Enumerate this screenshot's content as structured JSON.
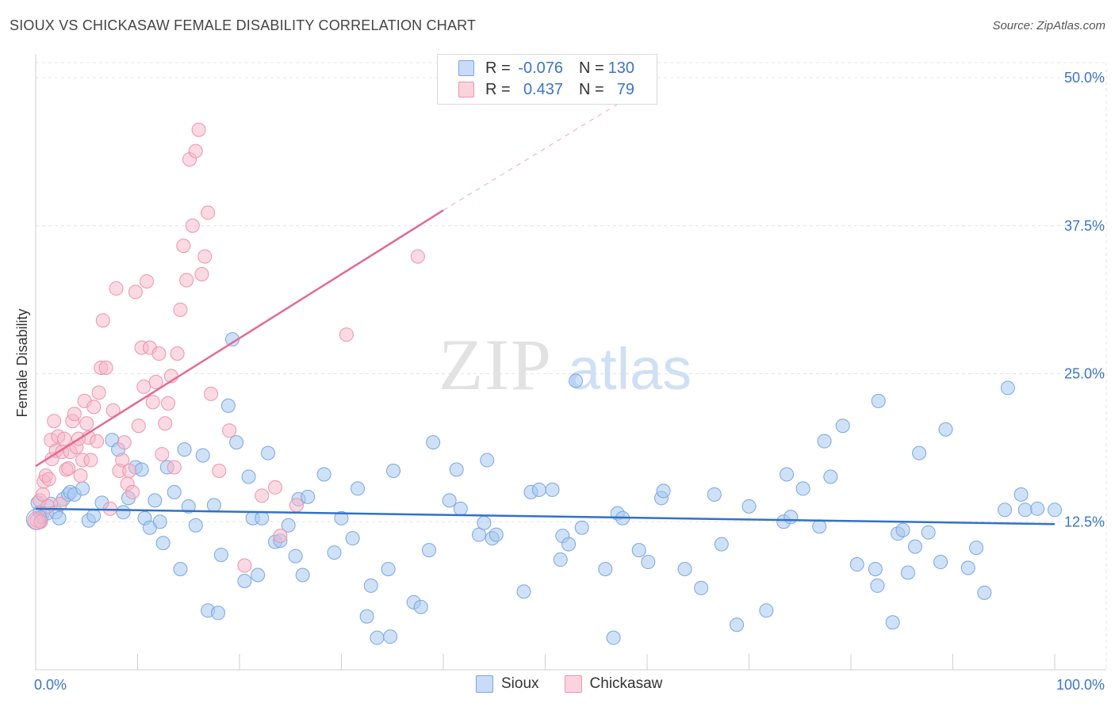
{
  "title": "SIOUX VS CHICKASAW FEMALE DISABILITY CORRELATION CHART",
  "source": "Source: ZipAtlas.com",
  "watermark": {
    "zip": "ZIP",
    "atlas": "atlas"
  },
  "legend": {
    "rows": [
      {
        "r_label": "R =",
        "r_value": "-0.076",
        "n_label": "N =",
        "n_value": "130"
      },
      {
        "r_label": "R =",
        "r_value": "0.437",
        "n_label": "N =",
        "n_value": "79"
      }
    ]
  },
  "colors": {
    "sioux_fill": "#a8c8f0",
    "sioux_stroke": "#7aa6e0",
    "sioux_line": "#2f72c9",
    "chickasaw_fill": "#f7b6c8",
    "chickasaw_stroke": "#ec93ad",
    "chickasaw_line": "#e36a92",
    "axis_label": "#3a75c4",
    "grid": "#e4e4e4"
  },
  "chart_data": {
    "type": "scatter",
    "title": "SIOUX VS CHICKASAW FEMALE DISABILITY CORRELATION CHART",
    "xlabel": "",
    "ylabel": "Female Disability",
    "xlim": [
      0,
      100
    ],
    "ylim": [
      0,
      50
    ],
    "x_tick_labels": [
      {
        "value": 0,
        "label": "0.0%"
      },
      {
        "value": 100,
        "label": "100.0%"
      }
    ],
    "y_tick_labels": [
      {
        "value": 12.5,
        "label": "12.5%"
      },
      {
        "value": 25.0,
        "label": "25.0%"
      },
      {
        "value": 37.5,
        "label": "37.5%"
      },
      {
        "value": 50.0,
        "label": "50.0%"
      }
    ],
    "series": [
      {
        "name": "Sioux",
        "R": -0.076,
        "N": 130,
        "trend": {
          "x0": 0,
          "y0": 13.6,
          "x1": 100,
          "y1": 12.3
        },
        "points": [
          [
            0.2,
            14.1
          ],
          [
            0.4,
            13.3
          ],
          [
            0.6,
            12.9
          ],
          [
            1.1,
            13.2
          ],
          [
            1.5,
            14.0
          ],
          [
            2.0,
            13.3
          ],
          [
            2.3,
            12.8
          ],
          [
            2.7,
            14.4
          ],
          [
            3.2,
            14.8
          ],
          [
            3.4,
            15.0
          ],
          [
            3.8,
            14.8
          ],
          [
            4.6,
            15.3
          ],
          [
            5.2,
            12.6
          ],
          [
            5.7,
            13.0
          ],
          [
            6.5,
            14.1
          ],
          [
            7.5,
            19.4
          ],
          [
            8.1,
            18.6
          ],
          [
            8.6,
            13.3
          ],
          [
            9.1,
            14.5
          ],
          [
            9.8,
            17.1
          ],
          [
            10.4,
            16.9
          ],
          [
            10.7,
            12.8
          ],
          [
            11.2,
            12.0
          ],
          [
            11.7,
            14.3
          ],
          [
            12.2,
            12.5
          ],
          [
            12.5,
            10.7
          ],
          [
            12.9,
            17.1
          ],
          [
            13.6,
            15.0
          ],
          [
            14.2,
            8.5
          ],
          [
            14.6,
            18.6
          ],
          [
            15.0,
            13.8
          ],
          [
            15.7,
            12.2
          ],
          [
            16.4,
            18.1
          ],
          [
            16.9,
            5.0
          ],
          [
            17.5,
            13.9
          ],
          [
            17.9,
            4.8
          ],
          [
            18.2,
            9.7
          ],
          [
            18.9,
            22.3
          ],
          [
            19.3,
            27.9
          ],
          [
            19.7,
            19.2
          ],
          [
            20.5,
            7.5
          ],
          [
            20.9,
            16.3
          ],
          [
            21.3,
            12.8
          ],
          [
            21.8,
            8.0
          ],
          [
            22.2,
            12.8
          ],
          [
            22.8,
            18.3
          ],
          [
            23.5,
            10.8
          ],
          [
            24.0,
            10.9
          ],
          [
            24.8,
            12.2
          ],
          [
            25.5,
            9.6
          ],
          [
            25.8,
            14.4
          ],
          [
            26.2,
            8.0
          ],
          [
            26.7,
            14.6
          ],
          [
            28.3,
            16.5
          ],
          [
            29.3,
            9.9
          ],
          [
            30.0,
            12.8
          ],
          [
            31.1,
            11.1
          ],
          [
            31.6,
            15.3
          ],
          [
            32.5,
            4.5
          ],
          [
            32.9,
            7.1
          ],
          [
            33.5,
            2.7
          ],
          [
            34.6,
            8.5
          ],
          [
            34.8,
            2.8
          ],
          [
            35.1,
            16.8
          ],
          [
            37.1,
            5.7
          ],
          [
            37.8,
            5.3
          ],
          [
            38.6,
            10.1
          ],
          [
            39.0,
            19.2
          ],
          [
            40.6,
            14.3
          ],
          [
            41.3,
            16.9
          ],
          [
            41.7,
            13.6
          ],
          [
            43.5,
            11.4
          ],
          [
            44.0,
            12.4
          ],
          [
            44.3,
            17.7
          ],
          [
            44.8,
            11.1
          ],
          [
            45.2,
            11.4
          ],
          [
            47.9,
            6.6
          ],
          [
            48.6,
            15.0
          ],
          [
            49.4,
            15.2
          ],
          [
            50.7,
            15.2
          ],
          [
            51.5,
            9.3
          ],
          [
            51.7,
            11.3
          ],
          [
            52.3,
            10.6
          ],
          [
            53.0,
            24.4
          ],
          [
            53.6,
            12.0
          ],
          [
            55.9,
            8.5
          ],
          [
            56.7,
            2.7
          ],
          [
            57.1,
            13.2
          ],
          [
            57.6,
            12.8
          ],
          [
            59.2,
            10.1
          ],
          [
            60.1,
            9.1
          ],
          [
            61.4,
            14.5
          ],
          [
            61.6,
            15.1
          ],
          [
            63.7,
            8.5
          ],
          [
            65.3,
            6.9
          ],
          [
            66.6,
            14.8
          ],
          [
            67.3,
            10.6
          ],
          [
            68.8,
            3.8
          ],
          [
            70.0,
            13.8
          ],
          [
            71.7,
            5.0
          ],
          [
            73.4,
            12.5
          ],
          [
            73.7,
            16.5
          ],
          [
            74.1,
            12.9
          ],
          [
            75.3,
            15.3
          ],
          [
            76.9,
            12.1
          ],
          [
            77.4,
            19.3
          ],
          [
            78.0,
            16.3
          ],
          [
            79.2,
            20.6
          ],
          [
            80.6,
            8.9
          ],
          [
            82.4,
            8.5
          ],
          [
            82.6,
            7.1
          ],
          [
            82.7,
            22.7
          ],
          [
            84.1,
            4.0
          ],
          [
            84.6,
            11.5
          ],
          [
            85.1,
            11.8
          ],
          [
            85.6,
            8.2
          ],
          [
            86.3,
            10.4
          ],
          [
            86.7,
            18.3
          ],
          [
            87.6,
            11.6
          ],
          [
            88.8,
            9.1
          ],
          [
            89.3,
            20.3
          ],
          [
            91.5,
            8.6
          ],
          [
            92.3,
            10.3
          ],
          [
            93.1,
            6.5
          ],
          [
            95.1,
            13.5
          ],
          [
            95.4,
            23.8
          ],
          [
            96.7,
            14.8
          ],
          [
            97.1,
            13.5
          ],
          [
            98.3,
            13.6
          ],
          [
            100.0,
            13.5
          ]
        ]
      },
      {
        "name": "Chickasaw",
        "R": 0.437,
        "N": 79,
        "trend": {
          "x0": 0,
          "y0": 17.2,
          "x1": 40,
          "y1": 38.8
        },
        "trend_extension": {
          "x0": 40,
          "y0": 38.8,
          "x1": 61,
          "y1": 49.8
        },
        "points": [
          [
            0.1,
            12.6
          ],
          [
            0.4,
            14.3
          ],
          [
            0.5,
            12.5
          ],
          [
            0.7,
            14.8
          ],
          [
            0.8,
            15.9
          ],
          [
            1.0,
            16.4
          ],
          [
            1.2,
            13.8
          ],
          [
            1.3,
            16.1
          ],
          [
            1.5,
            19.4
          ],
          [
            1.6,
            17.8
          ],
          [
            1.8,
            21.0
          ],
          [
            2.0,
            18.5
          ],
          [
            2.2,
            19.7
          ],
          [
            2.4,
            14.0
          ],
          [
            2.6,
            18.4
          ],
          [
            2.8,
            19.5
          ],
          [
            3.0,
            16.9
          ],
          [
            3.2,
            17.0
          ],
          [
            3.4,
            18.4
          ],
          [
            3.6,
            21.0
          ],
          [
            3.8,
            21.6
          ],
          [
            4.0,
            18.8
          ],
          [
            4.2,
            19.5
          ],
          [
            4.4,
            16.4
          ],
          [
            4.6,
            17.7
          ],
          [
            4.8,
            22.7
          ],
          [
            5.0,
            20.8
          ],
          [
            5.2,
            19.6
          ],
          [
            5.4,
            17.7
          ],
          [
            5.7,
            22.2
          ],
          [
            6.0,
            19.3
          ],
          [
            6.2,
            23.4
          ],
          [
            6.4,
            25.5
          ],
          [
            6.6,
            29.5
          ],
          [
            6.9,
            25.5
          ],
          [
            7.3,
            13.6
          ],
          [
            7.6,
            21.9
          ],
          [
            7.9,
            32.2
          ],
          [
            8.2,
            16.8
          ],
          [
            8.5,
            17.7
          ],
          [
            8.7,
            19.2
          ],
          [
            9.0,
            15.7
          ],
          [
            9.2,
            16.8
          ],
          [
            9.5,
            15.0
          ],
          [
            9.8,
            31.9
          ],
          [
            10.1,
            20.6
          ],
          [
            10.4,
            27.2
          ],
          [
            10.6,
            23.9
          ],
          [
            10.9,
            32.8
          ],
          [
            11.2,
            27.2
          ],
          [
            11.5,
            22.6
          ],
          [
            11.8,
            24.3
          ],
          [
            12.1,
            26.7
          ],
          [
            12.4,
            18.2
          ],
          [
            12.7,
            20.8
          ],
          [
            13.0,
            22.5
          ],
          [
            13.3,
            24.8
          ],
          [
            13.6,
            17.1
          ],
          [
            13.9,
            26.7
          ],
          [
            14.2,
            30.4
          ],
          [
            14.5,
            35.8
          ],
          [
            14.8,
            32.9
          ],
          [
            15.1,
            43.1
          ],
          [
            15.4,
            37.5
          ],
          [
            15.7,
            43.8
          ],
          [
            16.0,
            45.6
          ],
          [
            16.3,
            33.4
          ],
          [
            16.6,
            34.9
          ],
          [
            16.9,
            38.6
          ],
          [
            17.2,
            23.3
          ],
          [
            18.0,
            16.8
          ],
          [
            19.0,
            20.2
          ],
          [
            20.5,
            8.8
          ],
          [
            22.2,
            14.7
          ],
          [
            23.5,
            15.4
          ],
          [
            24.0,
            11.3
          ],
          [
            25.6,
            13.9
          ],
          [
            30.5,
            28.3
          ],
          [
            37.5,
            34.9
          ]
        ]
      }
    ]
  }
}
